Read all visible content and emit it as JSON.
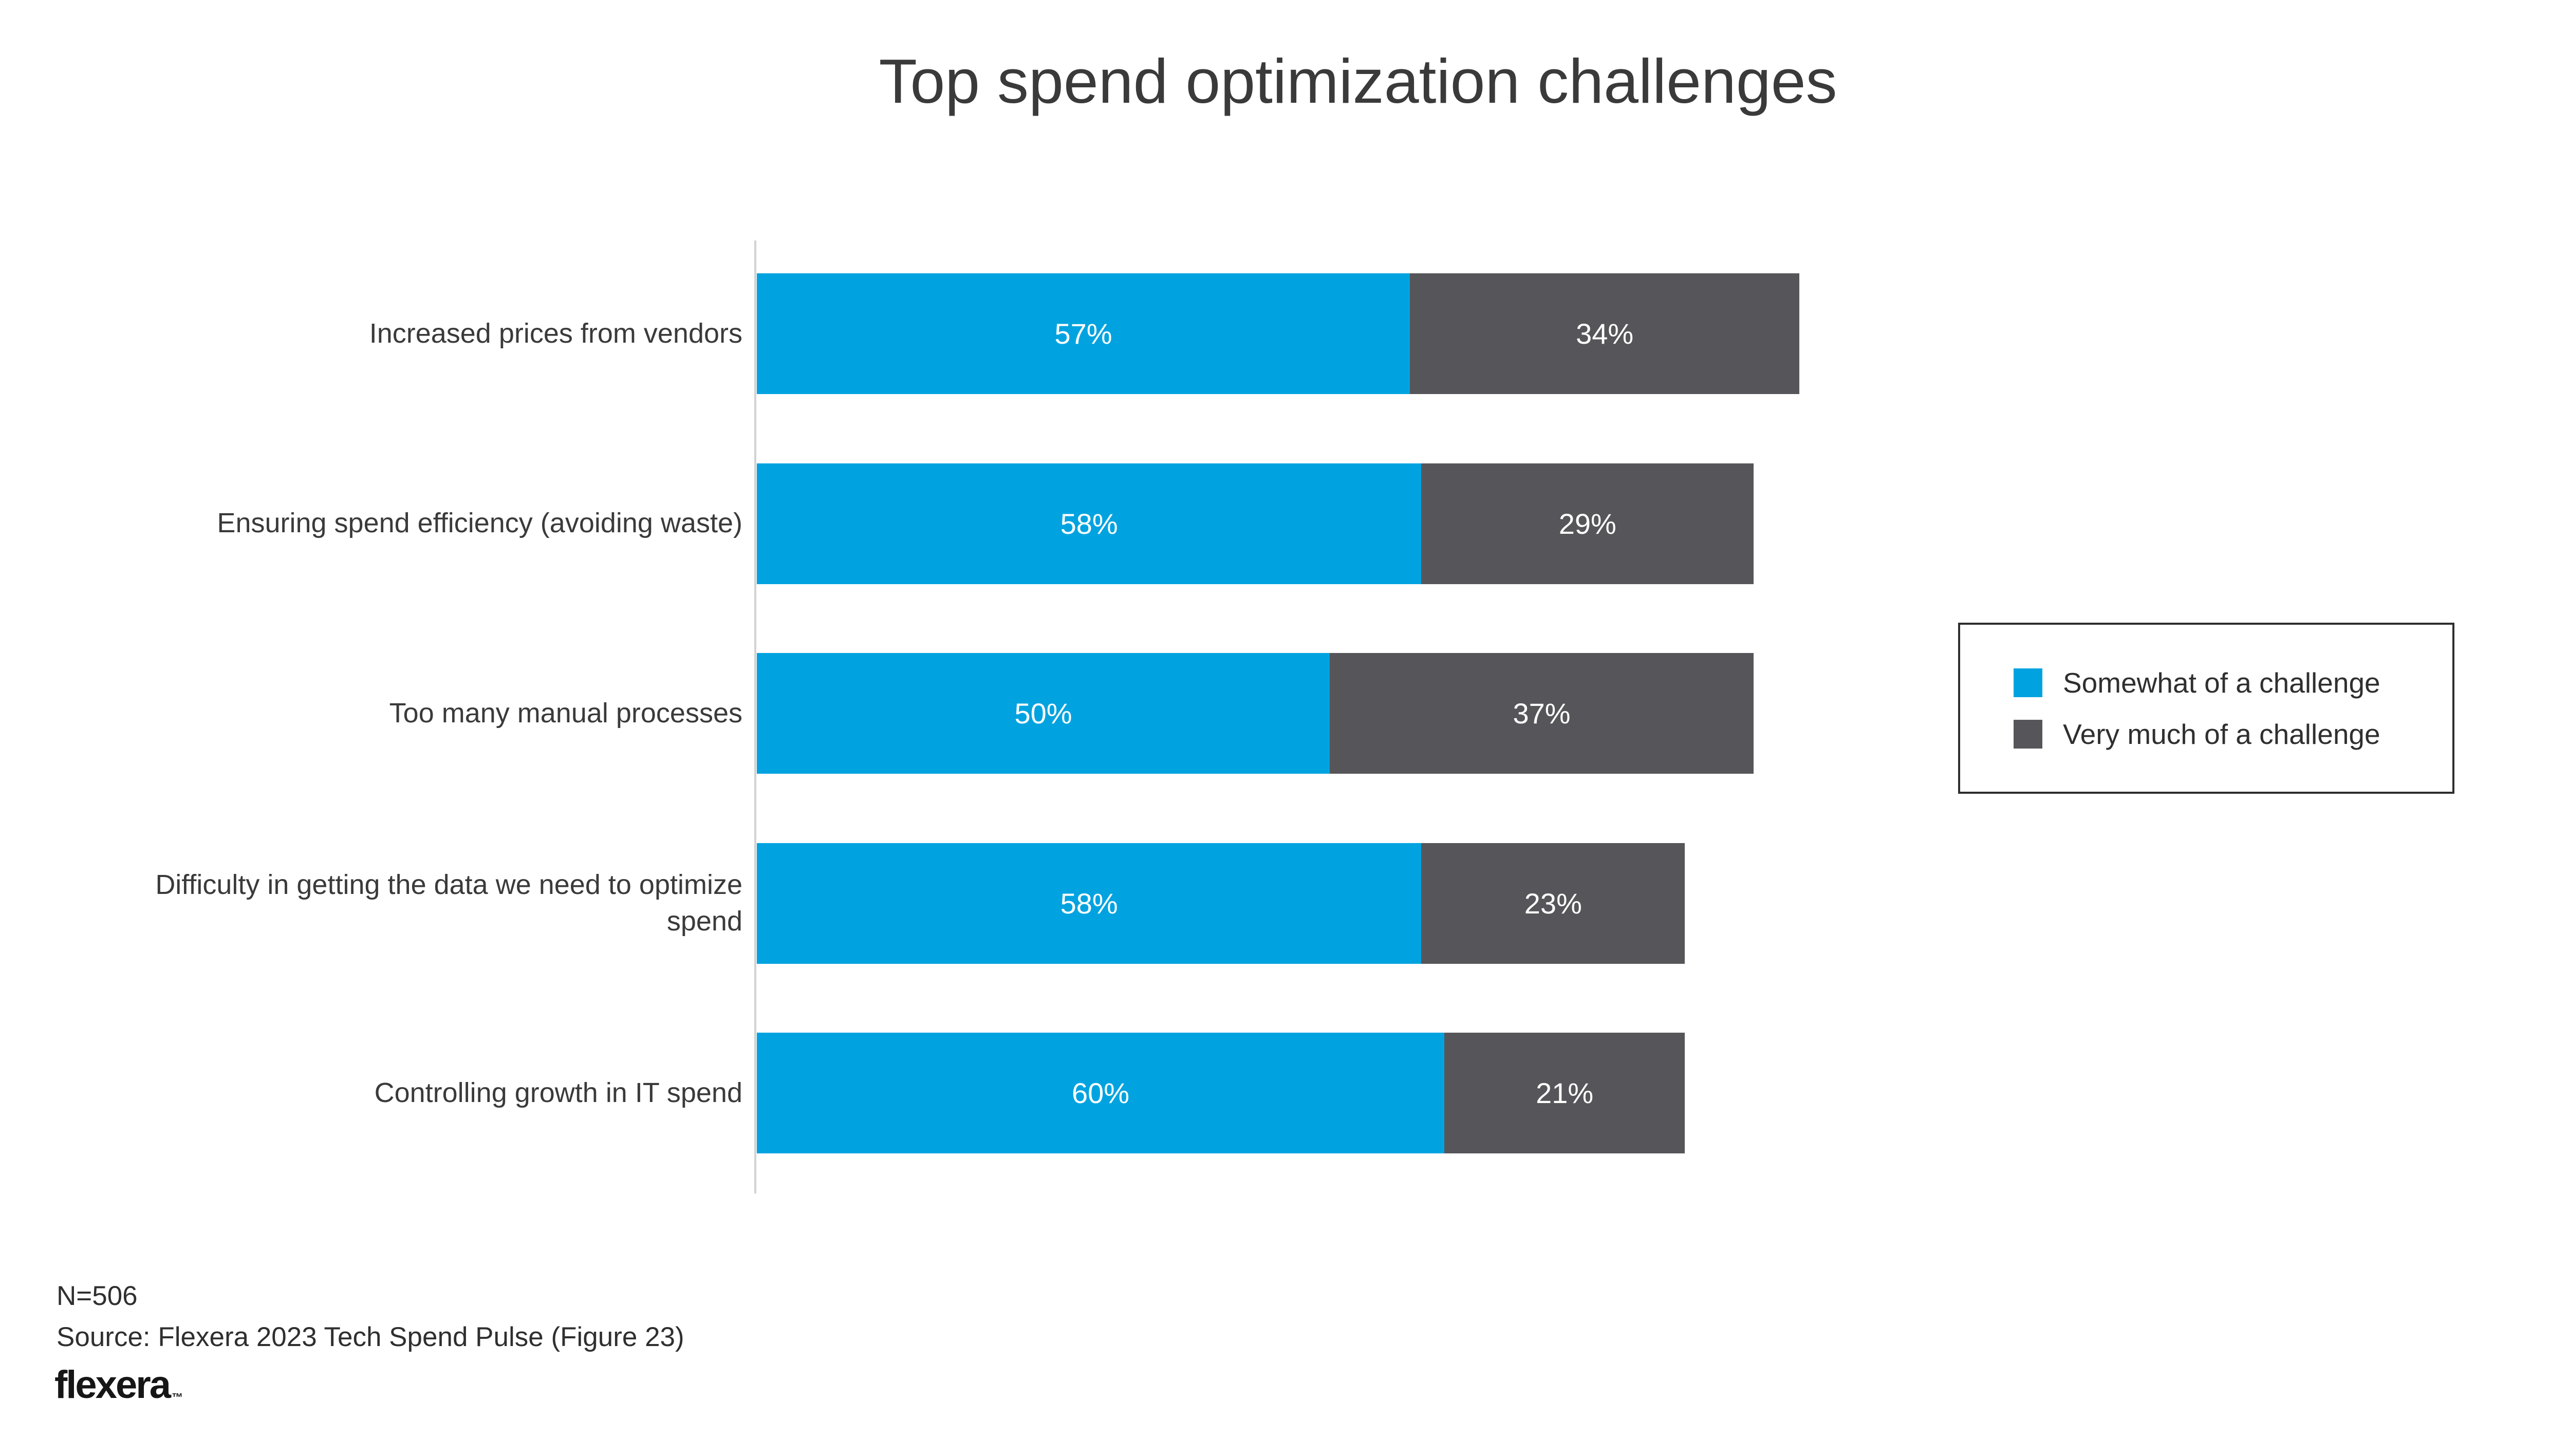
{
  "chart_data": {
    "type": "bar",
    "orientation": "horizontal",
    "stacked": true,
    "title": "Top spend optimization challenges",
    "categories": [
      "Increased prices from vendors",
      "Ensuring spend efficiency (avoiding waste)",
      "Too many manual processes",
      "Difficulty in getting the data we need to optimize spend",
      "Controlling growth in IT spend"
    ],
    "series": [
      {
        "name": "Somewhat of a challenge",
        "color": "#00A3E0",
        "values": [
          57,
          58,
          50,
          58,
          60
        ]
      },
      {
        "name": "Very much of a challenge",
        "color": "#56565A",
        "values": [
          34,
          29,
          37,
          23,
          21
        ]
      }
    ],
    "value_suffix": "%",
    "xlim": [
      0,
      100
    ],
    "bar_value_labels": true,
    "grid": false,
    "legend_position": "right"
  },
  "footer": {
    "sample_size": "N=506",
    "source": "Source: Flexera 2023 Tech Spend Pulse (Figure 23)"
  },
  "logo": {
    "text": "flexera",
    "trademark": "™"
  }
}
